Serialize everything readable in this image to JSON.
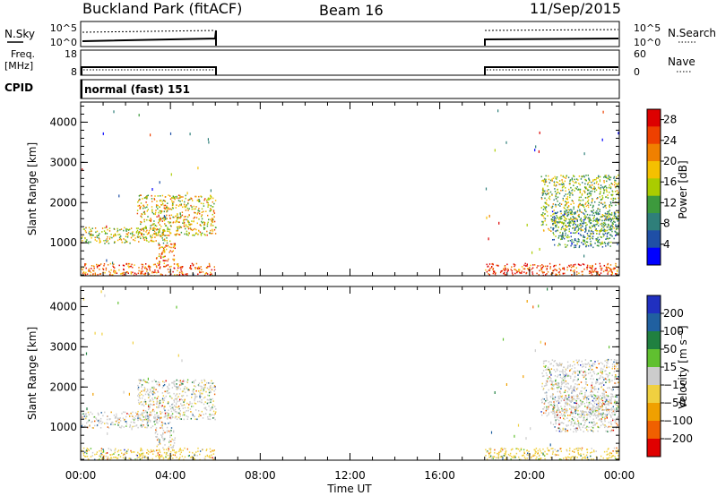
{
  "header": {
    "station": "Buckland Park (fitACF)",
    "beam": "Beam 16",
    "date": "11/Sep/2015"
  },
  "strip1": {
    "left_label": "N.Sky",
    "left_ticks": [
      "10^5",
      "10^0"
    ],
    "right_ticks": [
      "10^5",
      "10^0"
    ],
    "right_label": "N.Search"
  },
  "strip2": {
    "left_label_1": "Freq.",
    "left_label_2": "[MHz]",
    "left_ticks": [
      "18",
      "8"
    ],
    "right_ticks": [
      "60",
      "0"
    ],
    "right_label": "Nave"
  },
  "strip3": {
    "left_label": "CPID",
    "text": "normal (fast) 151"
  },
  "colors": {
    "power_scale": [
      "#0000ff",
      "#1f4fa6",
      "#2f7f7a",
      "#3d9a3d",
      "#aacc00",
      "#f5c000",
      "#f08000",
      "#ee4000",
      "#dd0000"
    ],
    "velocity_scale": [
      "#2030c0",
      "#2060a0",
      "#208040",
      "#60c030",
      "#cccccc",
      "#f0d040",
      "#f0a000",
      "#f06000",
      "#e00000"
    ]
  },
  "chart_data": [
    {
      "type": "heatmap",
      "panel": "power",
      "ylabel": "Slant Range [km]",
      "xlabel": "",
      "ylim": [
        180,
        4500
      ],
      "xlim": [
        0,
        24
      ],
      "y_ticks": [
        "1000",
        "2000",
        "3000",
        "4000"
      ],
      "x_ticks": [
        "00:00",
        "04:00",
        "08:00",
        "12:00",
        "16:00",
        "20:00",
        "00:00"
      ],
      "colorbar_label": "Power [dB]",
      "colorbar_ticks": [
        "4",
        "8",
        "12",
        "16",
        "20",
        "24",
        "28"
      ],
      "clim": [
        0,
        30
      ],
      "data_windows_utc": [
        [
          0,
          6
        ],
        [
          18,
          24
        ]
      ],
      "echo_regions": [
        {
          "t": [
            0,
            4
          ],
          "range": [
            1000,
            1400
          ],
          "power": 16
        },
        {
          "t": [
            2.5,
            6
          ],
          "range": [
            1200,
            2200
          ],
          "power": 18
        },
        {
          "t": [
            3.3,
            4.2
          ],
          "range": [
            500,
            1000
          ],
          "power": 22
        },
        {
          "t": [
            0,
            6
          ],
          "range": [
            180,
            500
          ],
          "power": 24
        },
        {
          "t": [
            18,
            24
          ],
          "range": [
            180,
            500
          ],
          "power": 26
        },
        {
          "t": [
            20.5,
            24
          ],
          "range": [
            1300,
            2700
          ],
          "power": 14
        },
        {
          "t": [
            21,
            24
          ],
          "range": [
            900,
            1800
          ],
          "power": 10
        }
      ]
    },
    {
      "type": "heatmap",
      "panel": "velocity",
      "ylabel": "Slant Range [km]",
      "xlabel": "Time UT",
      "ylim": [
        180,
        4500
      ],
      "xlim": [
        0,
        24
      ],
      "y_ticks": [
        "1000",
        "2000",
        "3000",
        "4000"
      ],
      "x_ticks": [
        "00:00",
        "04:00",
        "08:00",
        "12:00",
        "16:00",
        "20:00",
        "00:00"
      ],
      "colorbar_label": "Velocity [m s⁻¹]",
      "colorbar_ticks": [
        "200",
        "100",
        "50",
        "15",
        "−15",
        "−50",
        "−100",
        "−200"
      ],
      "clim": [
        -250,
        250
      ],
      "data_windows_utc": [
        [
          0,
          6
        ],
        [
          18,
          24
        ]
      ],
      "echo_regions": [
        {
          "t": [
            0,
            4
          ],
          "range": [
            1000,
            1400
          ],
          "velocity": 0
        },
        {
          "t": [
            2.5,
            6
          ],
          "range": [
            1200,
            2200
          ],
          "velocity": -20
        },
        {
          "t": [
            3.3,
            4.2
          ],
          "range": [
            500,
            1000
          ],
          "velocity": 0
        },
        {
          "t": [
            0,
            6
          ],
          "range": [
            180,
            500
          ],
          "velocity": -40
        },
        {
          "t": [
            18,
            24
          ],
          "range": [
            180,
            500
          ],
          "velocity": -40
        },
        {
          "t": [
            20.5,
            24
          ],
          "range": [
            1300,
            2700
          ],
          "velocity": 0
        },
        {
          "t": [
            21,
            24
          ],
          "range": [
            900,
            1800
          ],
          "velocity": 0
        }
      ]
    }
  ]
}
